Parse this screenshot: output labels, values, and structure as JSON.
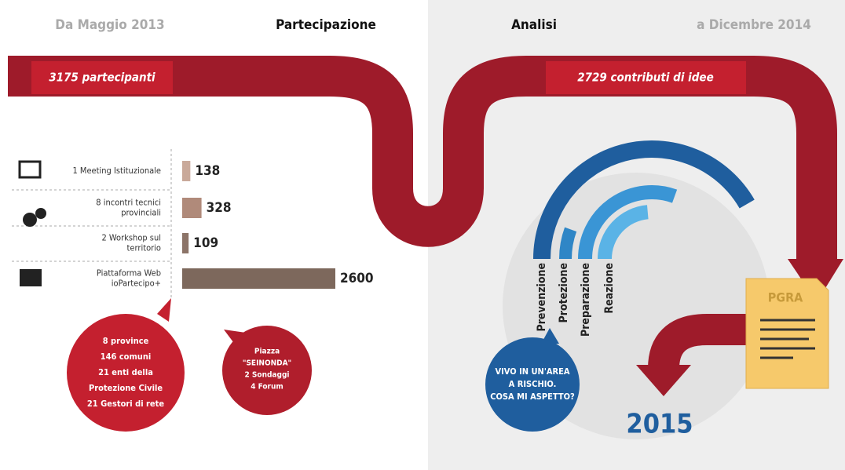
{
  "header": {
    "left_date": "Da Maggio 2013",
    "left_title": "Partecipazione",
    "right_title": "Analisi",
    "right_date": "a Dicembre 2014"
  },
  "banners": [
    "3175 partecipanti",
    "2729 contributi di idee"
  ],
  "participation_chart": {
    "type": "bar",
    "labels": [
      [
        "1 Meeting Istituzionale"
      ],
      [
        "8 incontri tecnici",
        "provinciali"
      ],
      [
        "2 Workshop sul",
        "territorio"
      ],
      [
        "Piattaforma Web",
        "ioPartecipo+"
      ]
    ],
    "values": [
      138,
      328,
      109,
      2600
    ],
    "colors": [
      "#c9a99a",
      "#b08a7a",
      "#8c7468",
      "#7d685c"
    ]
  },
  "bubble_left": [
    "8 province",
    "146 comuni",
    "21 enti della",
    "Protezione Civile",
    "21 Gestori di rete"
  ],
  "bubble_mid": [
    "Piazza",
    "\"SEINONDA\"",
    "2 Sondaggi",
    "4 Forum"
  ],
  "question": [
    "VIVO IN UN'AREA",
    "A RISCHIO.",
    "COSA MI ASPETTO?"
  ],
  "phases": {
    "type": "radial",
    "categories": [
      "Prevenzione",
      "Protezione",
      "Preparazione",
      "Reazione"
    ],
    "values": [
      150,
      20,
      110,
      85
    ],
    "colors": [
      "#1f5e9e",
      "#2f86c6",
      "#3a95d5",
      "#5ab3e6"
    ]
  },
  "document": "PGRA",
  "year": "2015"
}
